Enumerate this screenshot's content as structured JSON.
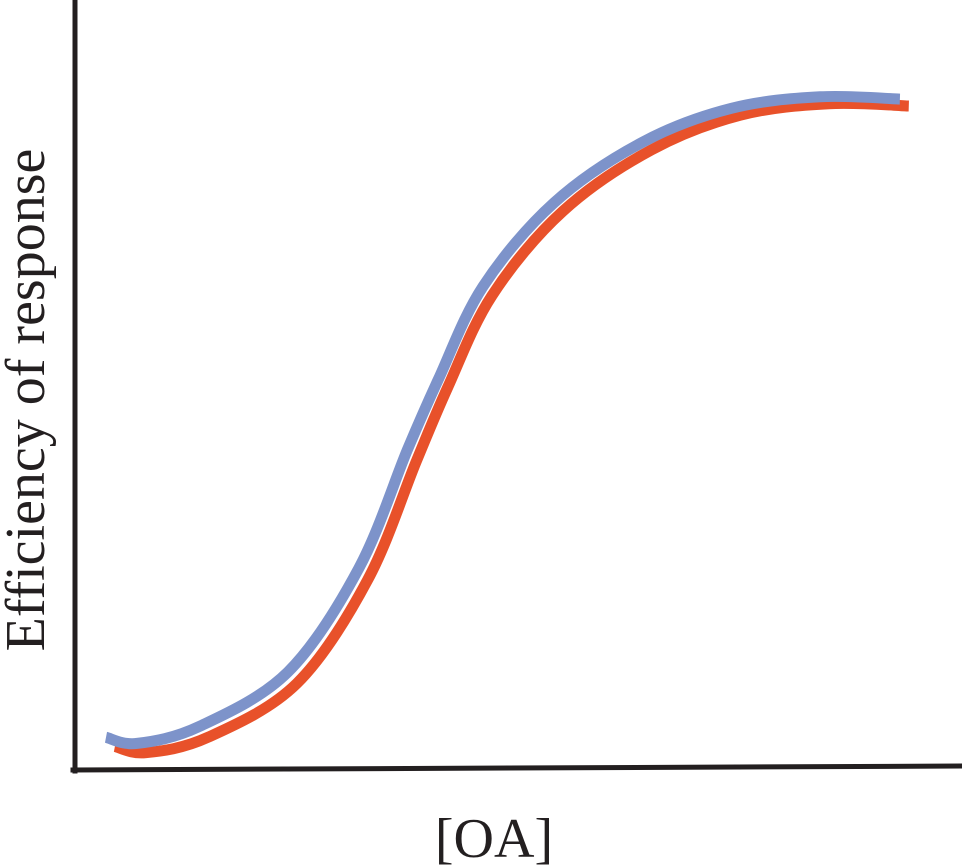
{
  "chart_data": {
    "type": "line",
    "title": "",
    "xlabel": "[OA]",
    "ylabel": "Efficiency of response",
    "x_ticks_shown": false,
    "y_ticks_shown": false,
    "grid": false,
    "legend": "none",
    "xlim": [
      0,
      100
    ],
    "ylim": [
      0,
      100
    ],
    "series": [
      {
        "color": "#e8512a",
        "x": [
          4.5,
          8,
          15,
          25,
          33,
          38.5,
          42,
          47,
          55,
          65,
          75,
          85,
          94
        ],
        "y": [
          2.8,
          2.0,
          4.0,
          11.0,
          24.5,
          40.0,
          49.5,
          61.5,
          72.5,
          80.5,
          85.0,
          86.5,
          86.2
        ]
      },
      {
        "color": "#7d93ca",
        "x": [
          3.5,
          7,
          14,
          24,
          32,
          37.5,
          41,
          46,
          54,
          64,
          74,
          84,
          93
        ],
        "y": [
          4.0,
          3.2,
          5.4,
          12.5,
          26.0,
          41.5,
          50.7,
          62.7,
          73.6,
          81.5,
          85.9,
          87.4,
          87.1
        ]
      }
    ]
  }
}
